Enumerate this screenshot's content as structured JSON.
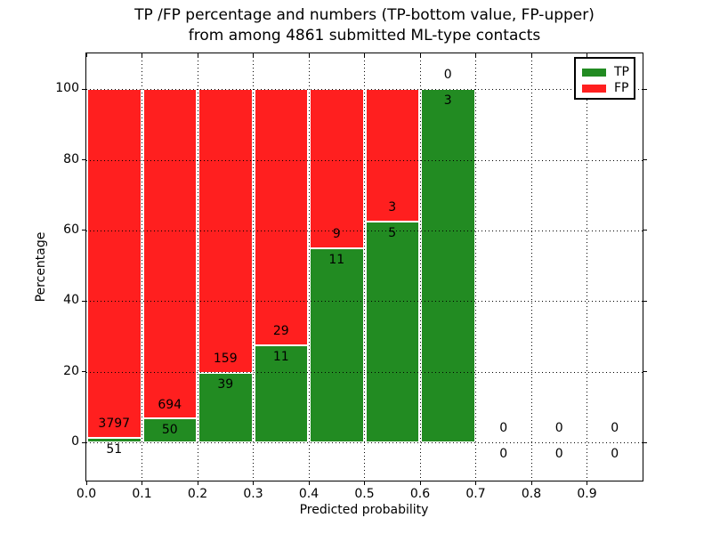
{
  "figure": {
    "background": "#ffffff",
    "text_color": "#000000"
  },
  "chart_data": {
    "type": "bar",
    "stacked": true,
    "title_lines": [
      "TP /FP percentage and numbers (TP-bottom value, FP-upper)",
      "from among 4861 submitted ML-type contacts"
    ],
    "total_submitted_contacts": 4861,
    "xlabel": "Predicted probability",
    "ylabel": "Percentage",
    "xlim": [
      0.0,
      1.0
    ],
    "ylim": [
      -10.8,
      110.1
    ],
    "bar_width": 0.1,
    "grid": {
      "visible": true,
      "style": "dotted",
      "color": "#000000"
    },
    "x_ticks": [
      "0.0",
      "0.1",
      "0.2",
      "0.3",
      "0.4",
      "0.5",
      "0.6",
      "0.7",
      "0.8",
      "0.9"
    ],
    "y_ticks": [
      "0",
      "20",
      "40",
      "60",
      "80",
      "100"
    ],
    "legend": {
      "position": "upper right",
      "entries": [
        {
          "label": "TP",
          "color": "#228B22"
        },
        {
          "label": "FP",
          "color": "#FF1F1F"
        }
      ]
    },
    "bins": [
      {
        "range": [
          0.0,
          0.1
        ],
        "tp": 51,
        "fp": 3797,
        "tp_pct": 1.33,
        "fp_pct": 98.67
      },
      {
        "range": [
          0.1,
          0.2
        ],
        "tp": 50,
        "fp": 694,
        "tp_pct": 6.72,
        "fp_pct": 93.28
      },
      {
        "range": [
          0.2,
          0.3
        ],
        "tp": 39,
        "fp": 159,
        "tp_pct": 19.7,
        "fp_pct": 80.3
      },
      {
        "range": [
          0.3,
          0.4
        ],
        "tp": 11,
        "fp": 29,
        "tp_pct": 27.5,
        "fp_pct": 72.5
      },
      {
        "range": [
          0.4,
          0.5
        ],
        "tp": 11,
        "fp": 9,
        "tp_pct": 55.0,
        "fp_pct": 45.0
      },
      {
        "range": [
          0.5,
          0.6
        ],
        "tp": 5,
        "fp": 3,
        "tp_pct": 62.5,
        "fp_pct": 37.5
      },
      {
        "range": [
          0.6,
          0.7
        ],
        "tp": 3,
        "fp": 0,
        "tp_pct": 100.0,
        "fp_pct": 0.0
      },
      {
        "range": [
          0.7,
          0.8
        ],
        "tp": 0,
        "fp": 0,
        "tp_pct": 0,
        "fp_pct": 0
      },
      {
        "range": [
          0.8,
          0.9
        ],
        "tp": 0,
        "fp": 0,
        "tp_pct": 0,
        "fp_pct": 0
      },
      {
        "range": [
          0.9,
          1.0
        ],
        "tp": 0,
        "fp": 0,
        "tp_pct": 0,
        "fp_pct": 0
      }
    ]
  }
}
